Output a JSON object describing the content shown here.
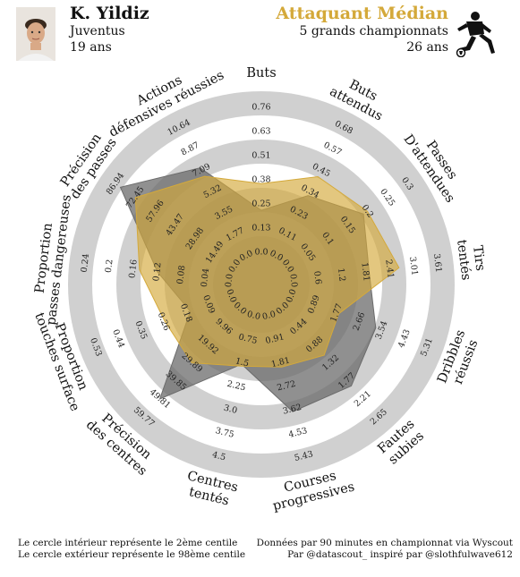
{
  "header": {
    "player_name": "K. Yildiz",
    "club": "Juventus",
    "age": "19 ans",
    "comparison_title": "Attaquant Médian",
    "comparison_subtitle": "5 grands championnats",
    "comparison_age": "26 ans",
    "player_color": "#6b6b6b",
    "comparison_color": "#d4a93a"
  },
  "footer": {
    "left_line1": "Le cercle intérieur représente le 2ème centile",
    "left_line2": "Le cercle extérieur représente le 98ème centile",
    "right_line1": "Données par 90 minutes en championnat via Wyscout",
    "right_line2": "Par @datascout_ inspiré par @slothfulwave612"
  },
  "chart_data": {
    "type": "radar",
    "axes": [
      {
        "label": [
          "Buts"
        ],
        "ticks": [
          "0.0",
          "0.13",
          "0.25",
          "0.38",
          "0.51",
          "0.63",
          "0.76"
        ]
      },
      {
        "label": [
          "Buts",
          "attendus"
        ],
        "ticks": [
          "0.0",
          "0.11",
          "0.23",
          "0.34",
          "0.45",
          "0.57",
          "0.68"
        ]
      },
      {
        "label": [
          "Passes",
          "D'attendues"
        ],
        "ticks": [
          "0.0",
          "0.05",
          "0.1",
          "0.15",
          "0.2",
          "0.25",
          "0.3"
        ]
      },
      {
        "label": [
          "Tirs",
          "tentés"
        ],
        "ticks": [
          "0.0",
          "0.6",
          "1.2",
          "1.81",
          "2.41",
          "3.01",
          "3.61"
        ]
      },
      {
        "label": [
          "Dribbles",
          "réussis"
        ],
        "ticks": [
          "0.0",
          "0.89",
          "1.77",
          "2.66",
          "3.54",
          "4.43",
          "5.31"
        ]
      },
      {
        "label": [
          "Fautes",
          "subies"
        ],
        "ticks": [
          "0.0",
          "0.44",
          "0.88",
          "1.32",
          "1.77",
          "2.21",
          "2.65"
        ]
      },
      {
        "label": [
          "Courses",
          "progressives"
        ],
        "ticks": [
          "0.0",
          "0.91",
          "1.81",
          "2.72",
          "3.62",
          "4.53",
          "5.43"
        ]
      },
      {
        "label": [
          "Centres",
          "tentés"
        ],
        "ticks": [
          "0.0",
          "0.75",
          "1.5",
          "2.25",
          "3.0",
          "3.75",
          "4.5"
        ]
      },
      {
        "label": [
          "Précision",
          "des centres"
        ],
        "ticks": [
          "0.0",
          "9.96",
          "19.92",
          "29.89",
          "39.85",
          "49.81",
          "59.77"
        ]
      },
      {
        "label": [
          "Proportion",
          "touches surface"
        ],
        "ticks": [
          "0.0",
          "0.09",
          "0.18",
          "0.26",
          "0.35",
          "0.44",
          "0.53"
        ]
      },
      {
        "label": [
          "Proportion",
          "passes dangereuses"
        ],
        "ticks": [
          "0.0",
          "0.04",
          "0.08",
          "0.12",
          "0.16",
          "0.2",
          "0.24"
        ]
      },
      {
        "label": [
          "Précision",
          "des passes"
        ],
        "ticks": [
          "0.0",
          "14.49",
          "28.98",
          "43.47",
          "57.96",
          "72.45",
          "86.94"
        ]
      },
      {
        "label": [
          "Actions",
          "défensives réussies"
        ],
        "ticks": [
          "0.0",
          "1.77",
          "3.55",
          "5.32",
          "7.09",
          "8.87",
          "10.64"
        ]
      }
    ],
    "series": [
      {
        "name": "K. Yildiz",
        "color": "#6b6b6b",
        "values": [
          0.22,
          0.32,
          0.19,
          1.9,
          3.3,
          1.89,
          3.7,
          1.55,
          49.81,
          0.16,
          0.12,
          83.38,
          7.3
        ]
      },
      {
        "name": "Attaquant Médian",
        "color": "#d4a93a",
        "values": [
          0.36,
          0.42,
          0.2,
          2.65,
          1.85,
          1.14,
          1.98,
          1.61,
          29.89,
          0.26,
          0.15,
          72.45,
          6.6
        ]
      }
    ],
    "ring_labels": [
      "2ème centile",
      "98ème centile"
    ]
  }
}
